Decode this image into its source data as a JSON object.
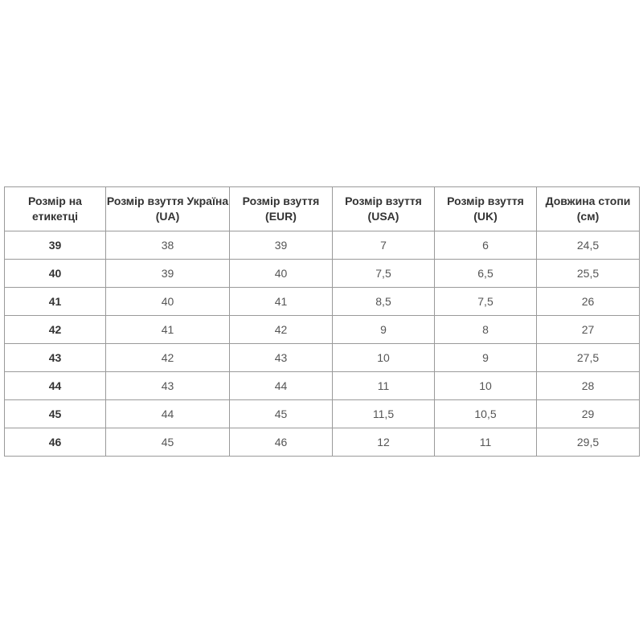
{
  "table": {
    "headers": [
      "Розмір на етикетці",
      "Розмір взуття Україна (UA)",
      "Розмір взуття (EUR)",
      "Розмір взуття (USA)",
      "Розмір взуття (UK)",
      "Довжина стопи (см)"
    ],
    "rows": [
      [
        "39",
        "38",
        "39",
        "7",
        "6",
        "24,5"
      ],
      [
        "40",
        "39",
        "40",
        "7,5",
        "6,5",
        "25,5"
      ],
      [
        "41",
        "40",
        "41",
        "8,5",
        "7,5",
        "26"
      ],
      [
        "42",
        "41",
        "42",
        "9",
        "8",
        "27"
      ],
      [
        "43",
        "42",
        "43",
        "10",
        "9",
        "27,5"
      ],
      [
        "44",
        "43",
        "44",
        "11",
        "10",
        "28"
      ],
      [
        "45",
        "44",
        "45",
        "11,5",
        "10,5",
        "29"
      ],
      [
        "46",
        "45",
        "46",
        "12",
        "11",
        "29,5"
      ]
    ]
  }
}
